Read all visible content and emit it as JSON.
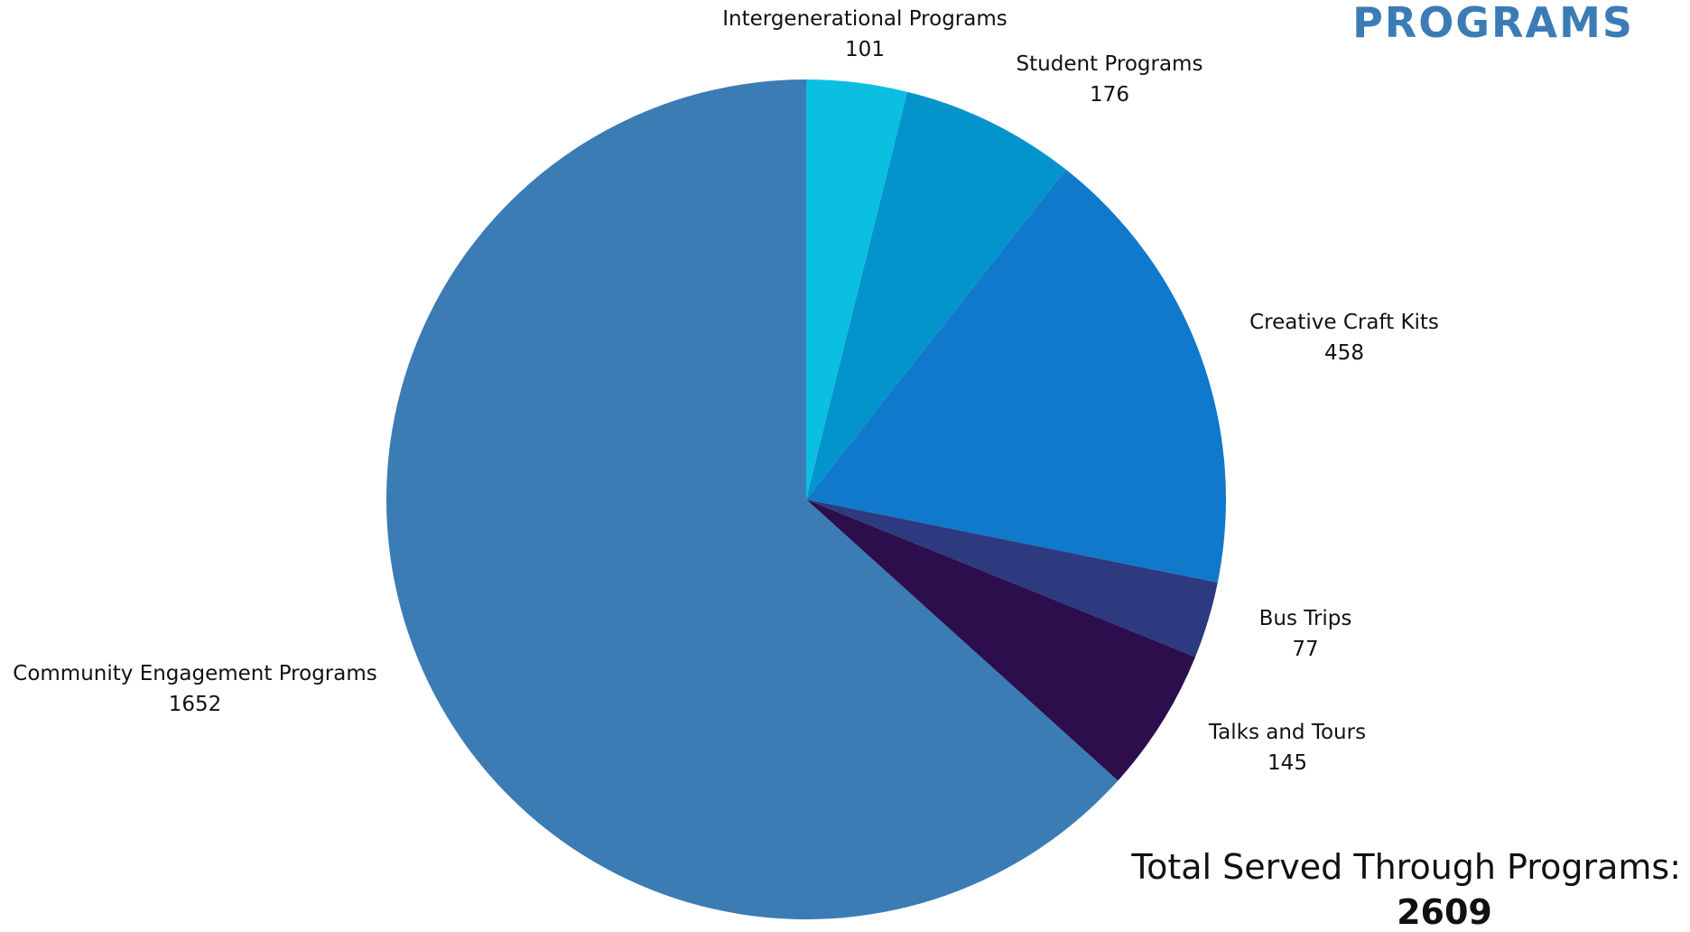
{
  "header": {
    "title": "PROGRAMS"
  },
  "total": {
    "label": "Total Served Through Programs:",
    "value": "2609"
  },
  "chart_data": {
    "type": "pie",
    "start_angle_deg": 0,
    "direction": "clockwise",
    "slices": [
      {
        "label": "Intergenerational Programs",
        "value": 101,
        "color": "#0bbfe0"
      },
      {
        "label": "Student Programs",
        "value": 176,
        "color": "#0494cc"
      },
      {
        "label": "Creative Craft Kits",
        "value": 458,
        "color": "#1079cc"
      },
      {
        "label": "Bus Trips",
        "value": 77,
        "color": "#2d3a7f"
      },
      {
        "label": "Talks and Tours",
        "value": 145,
        "color": "#2b0e4b"
      },
      {
        "label": "Community Engagement Programs",
        "value": 1652,
        "color": "#3b7cb5"
      }
    ]
  }
}
